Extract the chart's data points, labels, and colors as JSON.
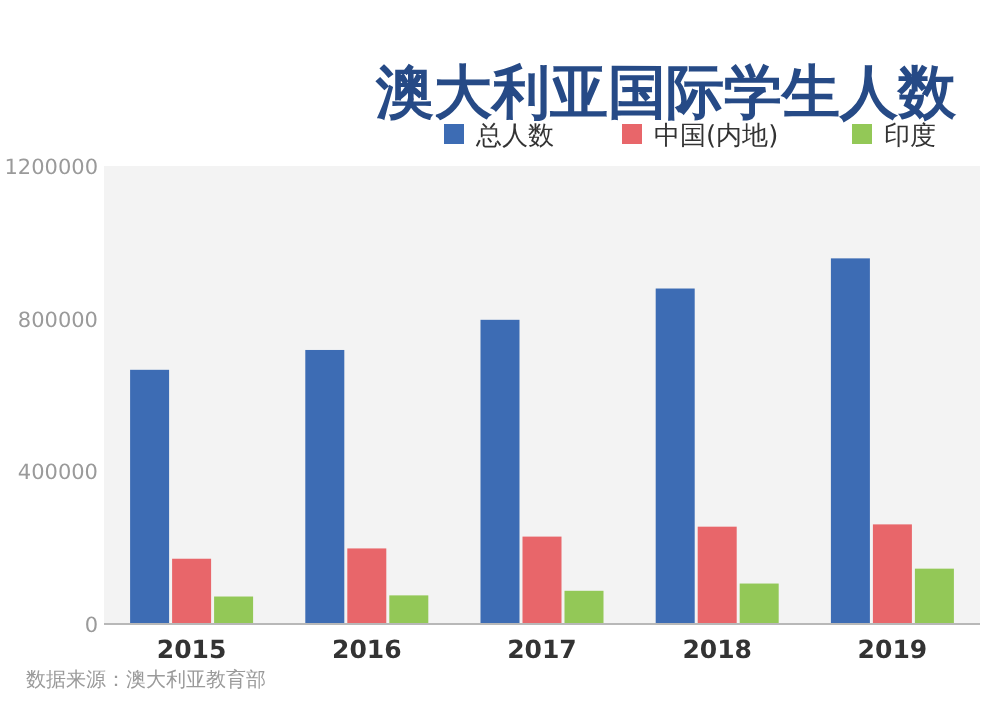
{
  "chart_data": {
    "type": "bar",
    "title": "澳大利亚国际学生人数",
    "categories": [
      "2015",
      "2016",
      "2017",
      "2018",
      "2019"
    ],
    "series": [
      {
        "name": "总人数",
        "color": "#3d6cb4",
        "values": [
          666000,
          718000,
          797000,
          879000,
          958000
        ]
      },
      {
        "name": "中国(内地)",
        "color": "#e8666a",
        "values": [
          171000,
          198000,
          229000,
          255000,
          261000
        ]
      },
      {
        "name": "印度",
        "color": "#93c857",
        "values": [
          72000,
          75000,
          87000,
          106000,
          145000
        ]
      }
    ],
    "ylim": [
      0,
      1200000
    ],
    "yticks": [
      0,
      400000,
      800000,
      1200000
    ],
    "legend": "top right",
    "annotations": [
      "数据来源：澳大利亚教育部"
    ]
  }
}
